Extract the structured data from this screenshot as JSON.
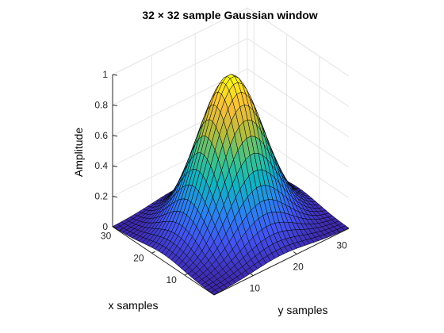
{
  "chart_data": {
    "type": "surface",
    "title": "32 × 32 sample Gaussian window",
    "xlabel": "x samples",
    "ylabel": "y samples",
    "zlabel": "Amplitude",
    "grid_size": 32,
    "xlim": [
      1,
      32
    ],
    "ylim": [
      1,
      32
    ],
    "zlim": [
      0,
      1
    ],
    "z_peak": 1,
    "x_ticks": [
      "10",
      "20",
      "30"
    ],
    "y_ticks": [
      "10",
      "20",
      "30"
    ],
    "z_ticks": [
      "0",
      "0.2",
      "0.4",
      "0.6",
      "0.8",
      "1"
    ],
    "grid": "on",
    "colormap": "parula",
    "colormap_stops": [
      "#3e26a8",
      "#4353f0",
      "#2a84f0",
      "#13b2c2",
      "#3fc38a",
      "#b8bc3c",
      "#f9bd3b",
      "#f9fb15"
    ],
    "edge_color": "#000000",
    "background": "#ffffff"
  }
}
